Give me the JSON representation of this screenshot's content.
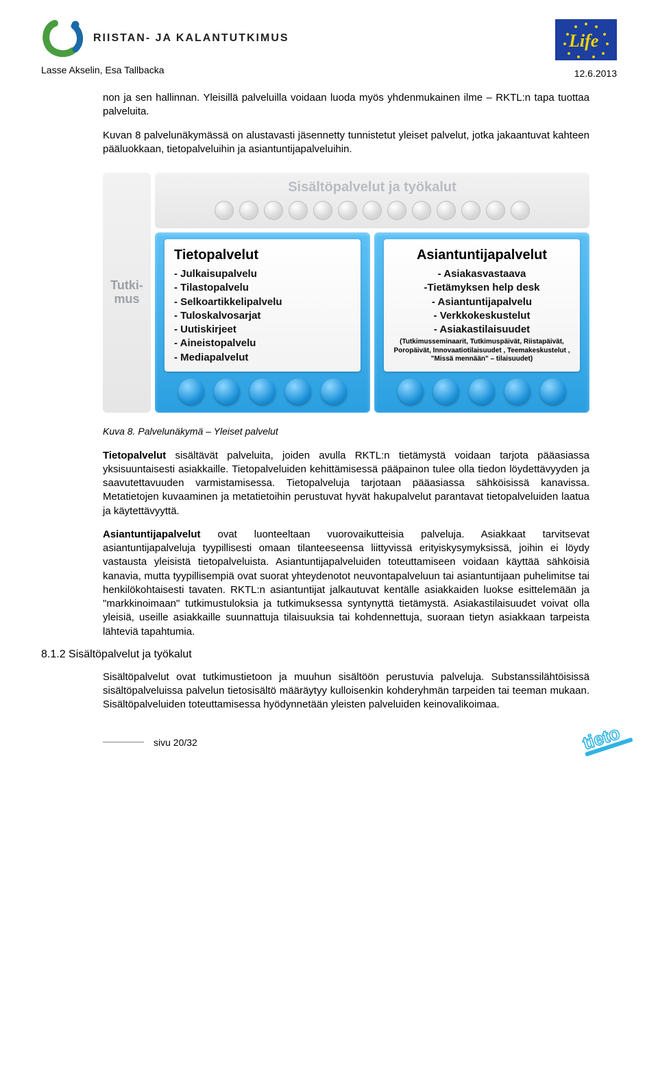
{
  "header": {
    "org_name": "RIISTAN- JA KALANTUTKIMUS",
    "authors": "Lasse Akselin, Esa Tallbacka",
    "date": "12.6.2013",
    "logo_colors": {
      "green": "#4a9d3f",
      "blue": "#1b6aa5"
    },
    "life_logo": {
      "bg": "#1c3fa0",
      "stroke": "#f5d400",
      "text": "Life"
    }
  },
  "body": {
    "intro": "non ja sen hallinnan. Yleisillä palveluilla voidaan luoda myös yhdenmukainen ilme – RKTL:n tapa tuottaa palveluita.",
    "p2": "Kuvan 8 palvelunäkymässä on alustavasti jäsennetty tunnistetut yleiset palvelut, jotka jakaantuvat kahteen pääluokkaan, tietopalveluihin ja asiantuntijapalveluihin.",
    "caption": "Kuva 8. Palvelunäkymä – Yleiset palvelut",
    "p3": "Tietopalvelut sisältävät palveluita, joiden avulla RKTL:n tietämystä voidaan tarjota pääasiassa yksisuuntaisesti asiakkaille. Tietopalveluiden kehittämisessä pääpainon tulee olla tiedon löydettävyyden ja saavutettavuuden varmistamisessa. Tietopalveluja tarjotaan pääasiassa sähköisissä kanavissa. Metatietojen kuvaaminen ja metatietoihin perustuvat hyvät hakupalvelut parantavat tietopalveluiden laatua ja käytettävyyttä.",
    "p4": "Asiantuntijapalvelut ovat luonteeltaan vuorovaikutteisia palveluja. Asiakkaat tarvitsevat asiantuntijapalveluja tyypillisesti omaan tilanteeseensa liittyvissä erityiskysymyksissä, joihin ei löydy vastausta yleisistä tietopalveluista. Asiantuntijapalveluiden toteuttamiseen voidaan käyttää sähköisiä kanavia, mutta tyypillisempiä ovat suorat yhteydenotot neuvontapalveluun tai asiantuntijaan puhelimitse tai henkilökohtaisesti tavaten. RKTL:n asiantuntijat jalkautuvat kentälle asiakkaiden luokse esittelemään ja \"markkinoimaan\" tutkimustuloksia ja tutkimuksessa syntynyttä tietämystä. Asiakastilaisuudet voivat olla yleisiä, useille asiakkaille suunnattuja tilaisuuksia tai kohdennettuja, suoraan tietyn asiakkaan tarpeista lähteviä tapahtumia.",
    "section_heading": "8.1.2 Sisältöpalvelut ja työkalut",
    "p5": "Sisältöpalvelut ovat tutkimustietoon ja muuhun sisältöön perustuvia palveluja. Substanssilähtöisissä sisältöpalveluissa palvelun tietosisältö määräytyy kulloisenkin kohderyhmän tarpeiden tai teeman mukaan. Sisältöpalveluiden toteuttamisessa hyödynnetään yleisten palveluiden keinovalikoimaa."
  },
  "diagram": {
    "type": "infographic",
    "left_label": "Tutki-\nmus",
    "top_title": "Sisältöpalvelut ja työkalut",
    "top_dot_count": 13,
    "panel_colors": {
      "panel_bg_top": "#5cc0f5",
      "panel_bg_bottom": "#2a9fe0",
      "inner_bg": "#ffffff",
      "bluedot_light": "#8dd6ff",
      "bluedot_dark": "#136fa6",
      "graydot": "#d8d8d8",
      "greybox": "#ececec",
      "label_grey": "#b8bcc2"
    },
    "left_panel": {
      "title": "Tietopalvelut",
      "items": [
        "- Julkaisupalvelu",
        "- Tilastopalvelu",
        "- Selkoartikkelipalvelu",
        "- Tuloskalvosarjat",
        "- Uutiskirjeet",
        "- Aineistopalvelu",
        "- Mediapalvelut"
      ],
      "bluedot_count": 5
    },
    "right_panel": {
      "title": "Asiantuntijapalvelut",
      "items": [
        "- Asiakasvastaava",
        "-Tietämyksen help desk",
        "- Asiantuntijapalvelu",
        "- Verkkokeskustelut",
        "- Asiakastilaisuudet"
      ],
      "subnote": "(Tutkimusseminaarit, Tutkimuspäivät, Riistapäivät, Poropäivät, Innovaatiotilaisuudet , Teemakeskustelut , \"Missä mennään\" – tilaisuudet)",
      "bluedot_count": 5
    }
  },
  "footer": {
    "page": "sivu 20/32",
    "tieto_color": "#30b3e6"
  }
}
